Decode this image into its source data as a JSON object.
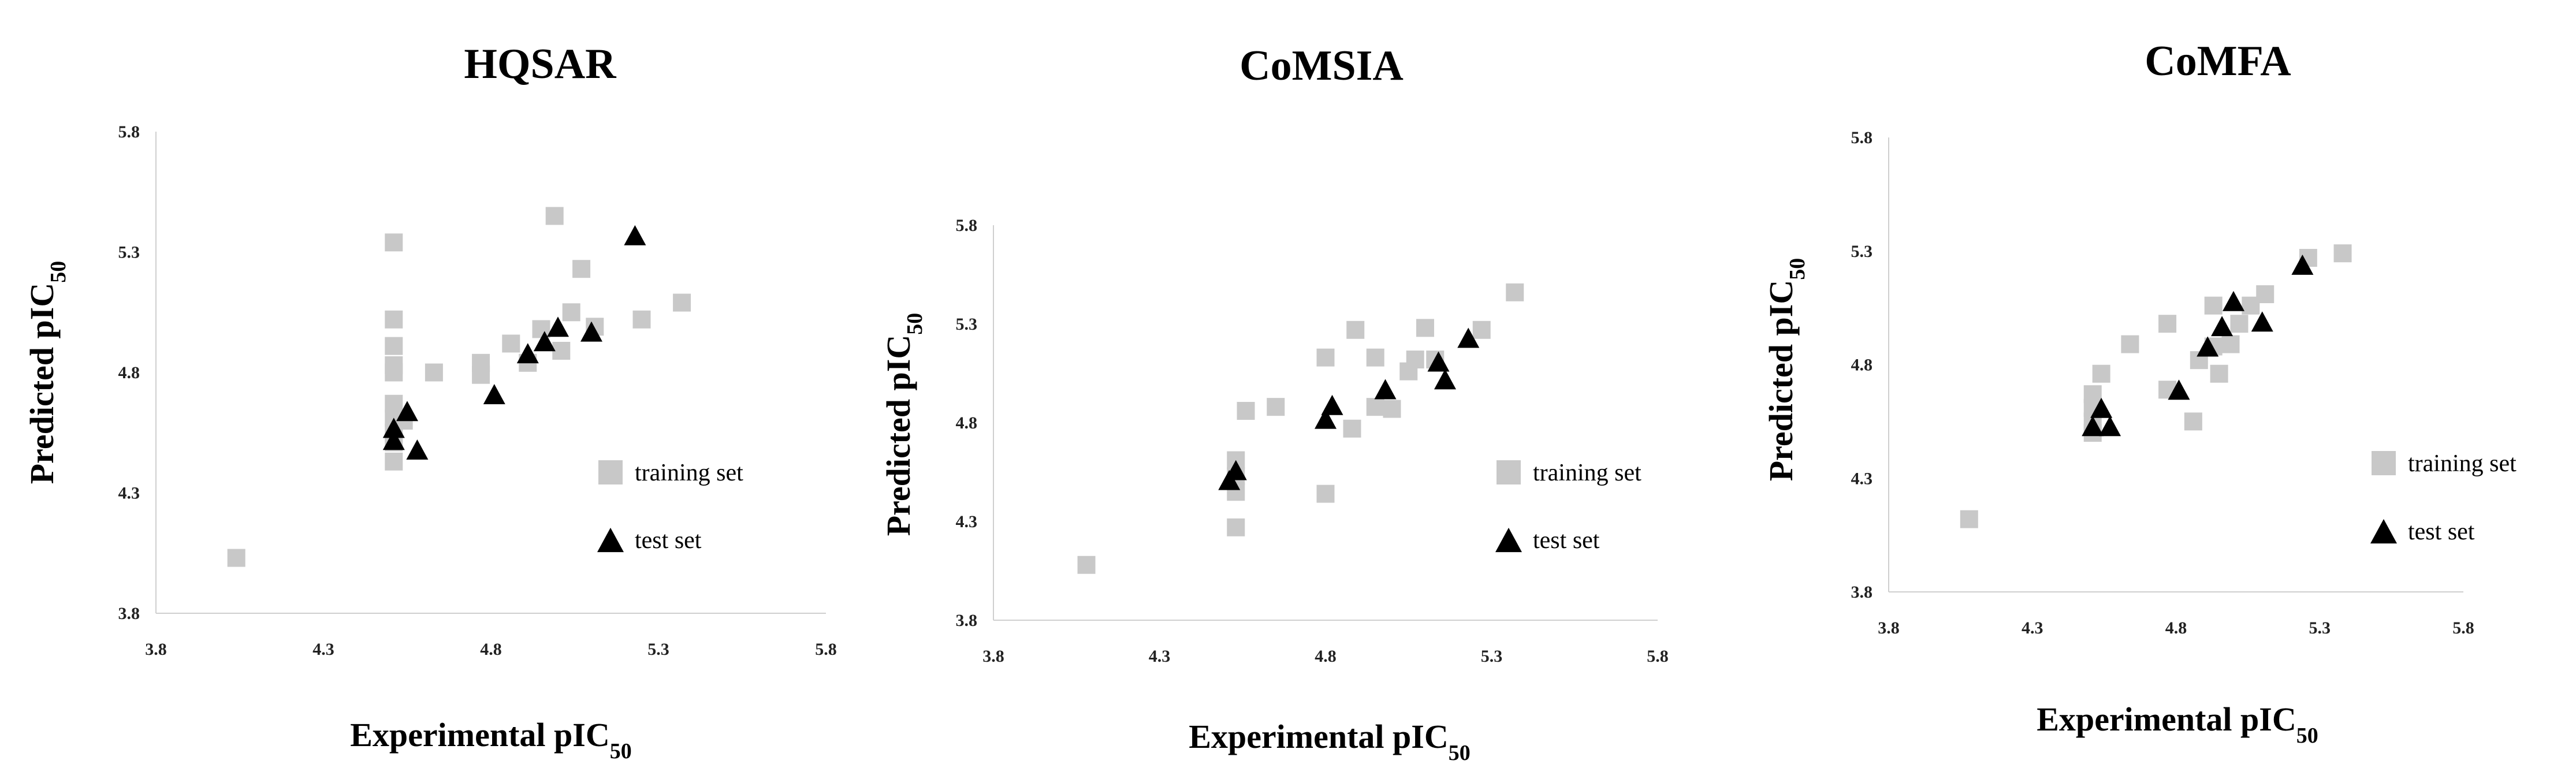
{
  "colors": {
    "training": "#c8c8c8",
    "test": "#000000"
  },
  "chart_data": [
    {
      "type": "scatter",
      "title": "HQSAR",
      "xlabel": "Experimental pIC",
      "ylabel": "Predicted pIC",
      "label_subscript": "50",
      "xlim": [
        3.8,
        5.8
      ],
      "ylim": [
        3.8,
        5.8
      ],
      "xticks": [
        "3.8",
        "4.3",
        "4.8",
        "5.3",
        "5.8"
      ],
      "yticks": [
        "3.8",
        "4.3",
        "4.8",
        "5.3",
        "5.8"
      ],
      "legend_position": "right",
      "series": [
        {
          "name": "training set",
          "marker": "square",
          "points": [
            [
              4.04,
              4.03
            ],
            [
              4.51,
              5.34
            ],
            [
              4.51,
              5.02
            ],
            [
              4.51,
              4.91
            ],
            [
              4.51,
              4.83
            ],
            [
              4.51,
              4.8
            ],
            [
              4.51,
              4.67
            ],
            [
              4.51,
              4.61
            ],
            [
              4.51,
              4.55
            ],
            [
              4.51,
              4.51
            ],
            [
              4.51,
              4.43
            ],
            [
              4.54,
              4.6
            ],
            [
              4.63,
              4.8
            ],
            [
              4.77,
              4.79
            ],
            [
              4.77,
              4.84
            ],
            [
              4.86,
              4.92
            ],
            [
              4.91,
              4.84
            ],
            [
              4.95,
              4.98
            ],
            [
              4.99,
              5.45
            ],
            [
              5.01,
              4.89
            ],
            [
              5.04,
              5.05
            ],
            [
              5.07,
              5.23
            ],
            [
              5.11,
              4.99
            ],
            [
              5.25,
              5.02
            ],
            [
              5.37,
              5.09
            ]
          ]
        },
        {
          "name": "test set",
          "marker": "triangle",
          "points": [
            [
              4.51,
              4.57
            ],
            [
              4.51,
              4.52
            ],
            [
              4.55,
              4.64
            ],
            [
              4.58,
              4.48
            ],
            [
              4.81,
              4.71
            ],
            [
              4.91,
              4.88
            ],
            [
              4.96,
              4.93
            ],
            [
              5.0,
              4.99
            ],
            [
              5.1,
              4.97
            ],
            [
              5.23,
              5.37
            ]
          ]
        }
      ]
    },
    {
      "type": "scatter",
      "title": "CoMSIA",
      "xlabel": "Experimental pIC",
      "ylabel": "Predicted pIC",
      "label_subscript": "50",
      "xlim": [
        3.8,
        5.8
      ],
      "ylim": [
        3.8,
        5.8
      ],
      "xticks": [
        "3.8",
        "4.3",
        "4.8",
        "5.3",
        "5.8"
      ],
      "yticks": [
        "3.8",
        "4.3",
        "4.8",
        "5.3",
        "5.8"
      ],
      "legend_position": "right",
      "series": [
        {
          "name": "training set",
          "marker": "square",
          "points": [
            [
              4.08,
              4.08
            ],
            [
              4.53,
              4.27
            ],
            [
              4.53,
              4.45
            ],
            [
              4.53,
              4.53
            ],
            [
              4.53,
              4.61
            ],
            [
              4.56,
              4.86
            ],
            [
              4.65,
              4.88
            ],
            [
              4.8,
              4.44
            ],
            [
              4.8,
              5.13
            ],
            [
              4.88,
              4.77
            ],
            [
              4.89,
              5.27
            ],
            [
              4.95,
              4.88
            ],
            [
              4.95,
              5.13
            ],
            [
              5.0,
              4.87
            ],
            [
              5.05,
              5.06
            ],
            [
              5.07,
              5.12
            ],
            [
              5.1,
              5.28
            ],
            [
              5.13,
              5.12
            ],
            [
              5.27,
              5.27
            ],
            [
              5.37,
              5.46
            ]
          ]
        },
        {
          "name": "test set",
          "marker": "triangle",
          "points": [
            [
              4.51,
              4.51
            ],
            [
              4.53,
              4.56
            ],
            [
              4.8,
              4.82
            ],
            [
              4.82,
              4.89
            ],
            [
              4.98,
              4.97
            ],
            [
              5.14,
              5.11
            ],
            [
              5.16,
              5.02
            ],
            [
              5.23,
              5.23
            ]
          ]
        }
      ]
    },
    {
      "type": "scatter",
      "title": "CoMFA",
      "xlabel": "Experimental pIC",
      "ylabel": "Predicted pIC",
      "label_subscript": "50",
      "xlim": [
        3.8,
        5.8
      ],
      "ylim": [
        3.8,
        5.8
      ],
      "xticks": [
        "3.8",
        "4.3",
        "4.8",
        "5.3",
        "5.8"
      ],
      "yticks": [
        "3.8",
        "4.3",
        "4.8",
        "5.3",
        "5.8"
      ],
      "legend_position": "right",
      "series": [
        {
          "name": "training set",
          "marker": "square",
          "points": [
            [
              4.08,
              4.12
            ],
            [
              4.51,
              4.5
            ],
            [
              4.51,
              4.55
            ],
            [
              4.51,
              4.61
            ],
            [
              4.51,
              4.67
            ],
            [
              4.54,
              4.76
            ],
            [
              4.64,
              4.89
            ],
            [
              4.77,
              4.69
            ],
            [
              4.77,
              4.98
            ],
            [
              4.86,
              4.55
            ],
            [
              4.88,
              4.82
            ],
            [
              4.93,
              4.88
            ],
            [
              4.93,
              5.06
            ],
            [
              4.95,
              4.76
            ],
            [
              4.99,
              4.89
            ],
            [
              5.02,
              4.98
            ],
            [
              5.06,
              5.06
            ],
            [
              5.11,
              5.11
            ],
            [
              5.26,
              5.27
            ],
            [
              5.38,
              5.29
            ]
          ]
        },
        {
          "name": "test set",
          "marker": "triangle",
          "points": [
            [
              4.51,
              4.53
            ],
            [
              4.54,
              4.61
            ],
            [
              4.57,
              4.53
            ],
            [
              4.81,
              4.69
            ],
            [
              4.91,
              4.88
            ],
            [
              4.96,
              4.97
            ],
            [
              5.0,
              5.08
            ],
            [
              5.1,
              4.99
            ],
            [
              5.24,
              5.24
            ]
          ]
        }
      ]
    }
  ]
}
